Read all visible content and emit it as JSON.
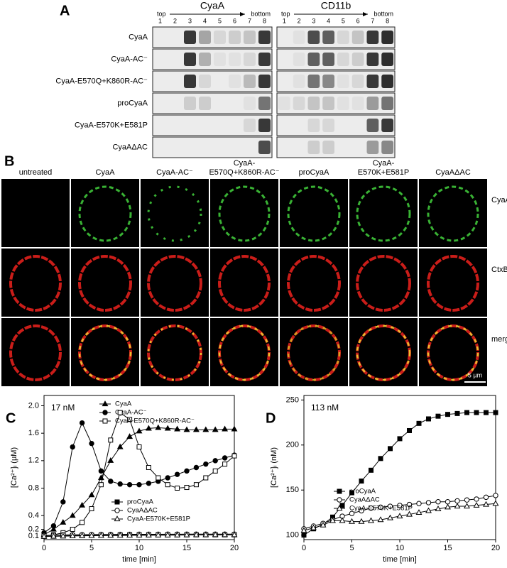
{
  "panel_a": {
    "label": "A",
    "blots": [
      {
        "title": "CyaA",
        "top": "top",
        "bottom": "bottom",
        "lanes": [
          "1",
          "2",
          "3",
          "4",
          "5",
          "6",
          "7",
          "8"
        ]
      },
      {
        "title": "CD11b",
        "top": "top",
        "bottom": "bottom",
        "lanes": [
          "1",
          "2",
          "3",
          "4",
          "5",
          "6",
          "7",
          "8"
        ]
      }
    ],
    "rows": [
      "CyaA",
      "CyaA-AC⁻",
      "CyaA-E570Q+K860R-AC⁻",
      "proCyaA",
      "CyaA-E570K+E581P",
      "CyaAΔAC"
    ]
  },
  "panel_b": {
    "label": "B",
    "columns": [
      [
        "untreated"
      ],
      [
        "CyaA"
      ],
      [
        "CyaA-AC⁻"
      ],
      [
        "CyaA-",
        "E570Q+K860R-AC⁻"
      ],
      [
        "proCyaA"
      ],
      [
        "CyaA-",
        "E570K+E581P"
      ],
      [
        "CyaAΔAC"
      ]
    ],
    "rows": [
      "CyaA",
      "CtxB",
      "merge"
    ],
    "scale_bar": "5 µm"
  },
  "chart_data": [
    {
      "type": "line",
      "label": "C",
      "annotation": "17 nM",
      "xlabel": "time [min]",
      "ylabel": "[Ca²⁺]ᵢ (µM)",
      "xlim": [
        0,
        20
      ],
      "xticks": [
        0,
        5,
        10,
        15,
        20
      ],
      "ylim": [
        0.05,
        2.15
      ],
      "yticks": [
        0.1,
        0.2,
        0.4,
        0.8,
        1.2,
        1.6,
        {
          "value": 2,
          "label": "2.0"
        }
      ],
      "x": [
        0,
        1,
        2,
        3,
        4,
        5,
        6,
        7,
        8,
        9,
        10,
        11,
        12,
        13,
        14,
        15,
        16,
        17,
        18,
        19,
        20
      ],
      "series": [
        {
          "name": "CyaA",
          "color": "#000000",
          "marker": "triangle",
          "filled": true,
          "values": [
            0.12,
            0.2,
            0.3,
            0.4,
            0.55,
            0.7,
            0.95,
            1.2,
            1.4,
            1.55,
            1.63,
            1.67,
            1.68,
            1.67,
            1.66,
            1.65,
            1.65,
            1.65,
            1.65,
            1.66,
            1.66
          ]
        },
        {
          "name": "CyaA-AC⁻",
          "color": "#000000",
          "marker": "circle",
          "filled": true,
          "values": [
            0.15,
            0.25,
            0.6,
            1.4,
            1.75,
            1.45,
            1.05,
            0.9,
            0.86,
            0.85,
            0.85,
            0.87,
            0.9,
            0.95,
            1.0,
            1.05,
            1.1,
            1.15,
            1.2,
            1.24,
            1.28
          ]
        },
        {
          "name": "CyaA-E570Q+K860R-AC⁻",
          "color": "#000000",
          "marker": "square",
          "filled": false,
          "values": [
            0.1,
            0.12,
            0.15,
            0.2,
            0.3,
            0.5,
            0.85,
            1.5,
            1.9,
            1.8,
            1.4,
            1.1,
            0.95,
            0.85,
            0.8,
            0.81,
            0.85,
            0.95,
            1.05,
            1.15,
            1.27
          ]
        },
        {
          "name": "proCyaA",
          "color": "#000000",
          "marker": "square",
          "filled": true,
          "values": [
            0.1,
            0.1,
            0.105,
            0.11,
            0.11,
            0.112,
            0.115,
            0.115,
            0.118,
            0.12,
            0.12,
            0.12,
            0.12,
            0.12,
            0.12,
            0.12,
            0.12,
            0.12,
            0.12,
            0.12,
            0.12
          ]
        },
        {
          "name": "CyaAΔAC",
          "color": "#000000",
          "marker": "circle",
          "filled": false,
          "values": [
            0.11,
            0.115,
            0.12,
            0.12,
            0.122,
            0.124,
            0.125,
            0.125,
            0.126,
            0.127,
            0.128,
            0.128,
            0.128,
            0.129,
            0.129,
            0.13,
            0.13,
            0.13,
            0.13,
            0.13,
            0.13
          ]
        },
        {
          "name": "CyaA-E570K+E581P",
          "color": "#000000",
          "marker": "triangle",
          "filled": false,
          "values": [
            0.095,
            0.098,
            0.1,
            0.103,
            0.105,
            0.107,
            0.108,
            0.11,
            0.11,
            0.112,
            0.113,
            0.114,
            0.115,
            0.115,
            0.116,
            0.117,
            0.118,
            0.118,
            0.119,
            0.12,
            0.12
          ]
        }
      ]
    },
    {
      "type": "line",
      "label": "D",
      "annotation": "113 nM",
      "xlabel": "time [min]",
      "ylabel": "[Ca²⁺]ᵢ (nM)",
      "xlim": [
        0,
        20
      ],
      "xticks": [
        0,
        5,
        10,
        15,
        20
      ],
      "ylim": [
        95,
        255
      ],
      "yticks": [
        100,
        150,
        200,
        250
      ],
      "x": [
        0,
        1,
        2,
        3,
        4,
        5,
        6,
        7,
        8,
        9,
        10,
        11,
        12,
        13,
        14,
        15,
        16,
        17,
        18,
        19,
        20
      ],
      "series": [
        {
          "name": "proCyaA",
          "color": "#000000",
          "marker": "square",
          "filled": true,
          "values": [
            100,
            107,
            112,
            120,
            133,
            147,
            160,
            172,
            185,
            196,
            207,
            216,
            224,
            229,
            232,
            234,
            235,
            236,
            236,
            236,
            236
          ]
        },
        {
          "name": "CyaAΔAC",
          "color": "#000000",
          "marker": "circle",
          "filled": false,
          "values": [
            107,
            110,
            113,
            117,
            121,
            124,
            127,
            130,
            131,
            132,
            133,
            134,
            135,
            136,
            137,
            137,
            138,
            139,
            140,
            142,
            144
          ]
        },
        {
          "name": "CyaA-E570K+E581P",
          "color": "#000000",
          "marker": "triangle",
          "filled": false,
          "values": [
            105,
            108,
            111,
            116,
            116,
            115,
            115,
            116,
            117,
            119,
            121,
            123,
            125,
            127,
            129,
            131,
            132,
            132,
            133,
            134,
            135
          ]
        }
      ]
    }
  ]
}
